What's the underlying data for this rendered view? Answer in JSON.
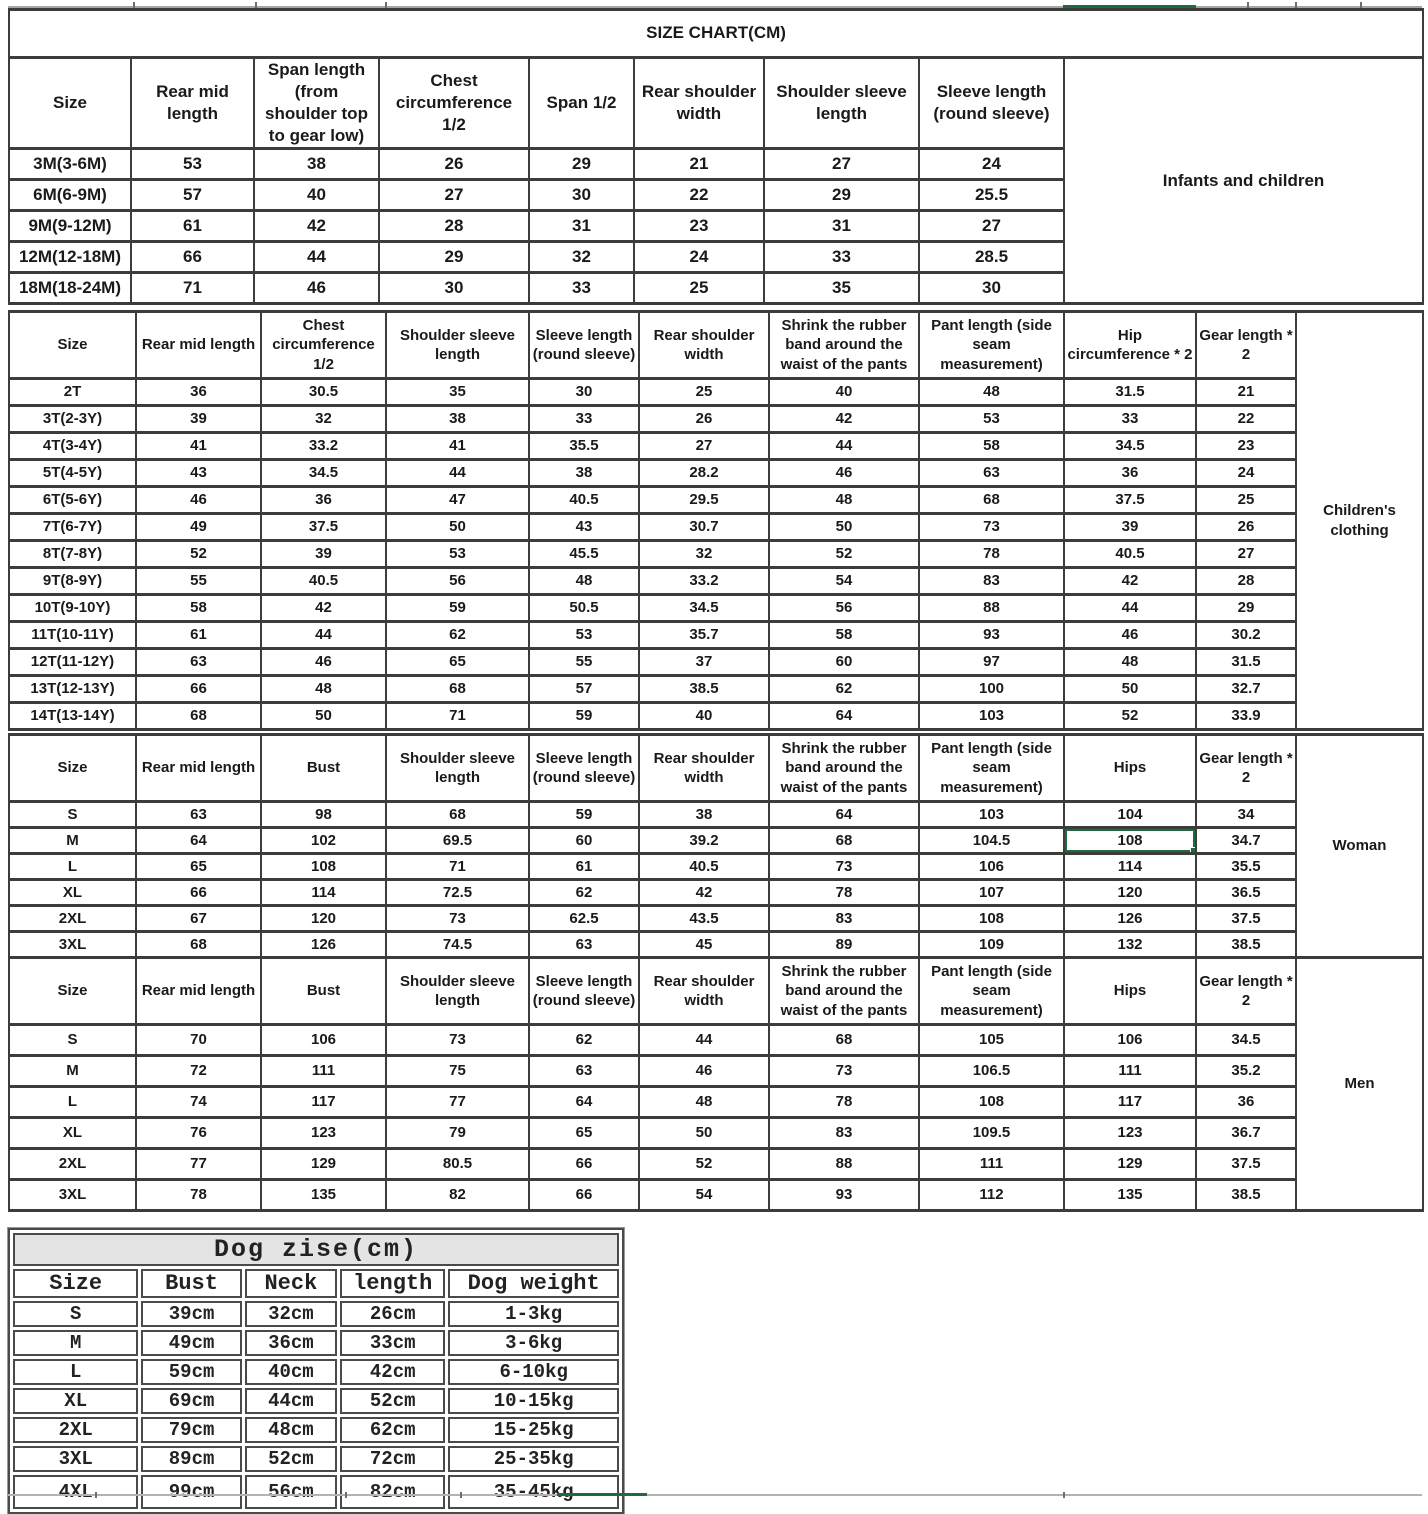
{
  "title": "SIZE CHART(CM)",
  "colors": {
    "accent_blue": "#2e74b5",
    "accent_navy": "#1f3864",
    "accent_red": "#9e2b25",
    "label_red": "#c00000",
    "selection_green": "#1e6b3c"
  },
  "infants": {
    "label": "Infants and children",
    "headers": [
      "Size",
      "Rear mid length",
      "Span length (from shoulder top to gear low)",
      "Chest circumference 1/2",
      "Span 1/2",
      "Rear shoulder width",
      "Shoulder sleeve length",
      "Sleeve length (round sleeve)"
    ],
    "rows": [
      {
        "size": "3M(3-6M)",
        "values": [
          53,
          38,
          26,
          29,
          21,
          27,
          24
        ]
      },
      {
        "size": "6M(6-9M)",
        "values": [
          57,
          40,
          27,
          30,
          22,
          29,
          25.5
        ]
      },
      {
        "size": "9M(9-12M)",
        "values": [
          61,
          42,
          28,
          31,
          23,
          31,
          27
        ]
      },
      {
        "size": "12M(12-18M)",
        "values": [
          66,
          44,
          29,
          32,
          24,
          33,
          28.5
        ]
      },
      {
        "size": "18M(18-24M)",
        "values": [
          71,
          46,
          30,
          33,
          25,
          35,
          30
        ]
      }
    ]
  },
  "children": {
    "label": "Children's clothing",
    "headers": [
      "Size",
      "Rear mid length",
      "Chest circumference 1/2",
      "Shoulder sleeve length",
      "Sleeve length (round sleeve)",
      "Rear shoulder width",
      "Shrink the rubber band around the waist of the pants",
      "Pant length (side seam measurement)",
      "Hip circumference * 2",
      "Gear length * 2"
    ],
    "black_value_cols": [
      4,
      7
    ],
    "rows": [
      {
        "size": "2T",
        "color": "black",
        "values": [
          36,
          30.5,
          35,
          30,
          25,
          40,
          48,
          31.5,
          21
        ]
      },
      {
        "size": "3T(2-3Y)",
        "color": "blue",
        "values": [
          39,
          32,
          38,
          33,
          26,
          42,
          53,
          33,
          22
        ]
      },
      {
        "size": "4T(3-4Y)",
        "color": "blue",
        "values": [
          41,
          33.2,
          41,
          35.5,
          27,
          44,
          58,
          34.5,
          23
        ]
      },
      {
        "size": "5T(4-5Y)",
        "color": "blue",
        "values": [
          43,
          34.5,
          44,
          38,
          28.2,
          46,
          63,
          36,
          24
        ]
      },
      {
        "size": "6T(5-6Y)",
        "color": "blue",
        "values": [
          46,
          36,
          47,
          40.5,
          29.5,
          48,
          68,
          37.5,
          25
        ]
      },
      {
        "size": "7T(6-7Y)",
        "color": "blue",
        "values": [
          49,
          37.5,
          50,
          43,
          30.7,
          50,
          73,
          39,
          26
        ]
      },
      {
        "size": "8T(7-8Y)",
        "color": "navy",
        "values": [
          52,
          39,
          53,
          45.5,
          32,
          52,
          78,
          40.5,
          27
        ]
      },
      {
        "size": "9T(8-9Y)",
        "color": "navy",
        "values": [
          55,
          40.5,
          56,
          48,
          33.2,
          54,
          83,
          42,
          28
        ]
      },
      {
        "size": "10T(9-10Y)",
        "color": "navy",
        "values": [
          58,
          42,
          59,
          50.5,
          34.5,
          56,
          88,
          44,
          29
        ]
      },
      {
        "size": "11T(10-11Y)",
        "color": "navy",
        "values": [
          61,
          44,
          62,
          53,
          35.7,
          58,
          93,
          46,
          30.2
        ]
      },
      {
        "size": "12T(11-12Y)",
        "color": "red",
        "values": [
          63,
          46,
          65,
          55,
          37,
          60,
          97,
          48,
          31.5
        ]
      },
      {
        "size": "13T(12-13Y)",
        "color": "red",
        "values": [
          66,
          48,
          68,
          57,
          38.5,
          62,
          100,
          50,
          32.7
        ]
      },
      {
        "size": "14T(13-14Y)",
        "color": "red",
        "values": [
          68,
          50,
          71,
          59,
          40,
          64,
          103,
          52,
          33.9
        ]
      }
    ]
  },
  "woman": {
    "label": "Woman",
    "headers": [
      "Size",
      "Rear mid length",
      "Bust",
      "Shoulder sleeve length",
      "Sleeve length (round sleeve)",
      "Rear shoulder width",
      "Shrink the rubber band around the waist of the pants",
      "Pant length (side seam measurement)",
      "Hips",
      "Gear length * 2"
    ],
    "selected": {
      "row": "M",
      "value_col": 7,
      "value": 108
    },
    "rows": [
      {
        "size": "S",
        "values": [
          63,
          98,
          68,
          59,
          38,
          64,
          103,
          104,
          34
        ]
      },
      {
        "size": "M",
        "values": [
          64,
          102,
          69.5,
          60,
          39.2,
          68,
          104.5,
          108,
          34.7
        ]
      },
      {
        "size": "L",
        "values": [
          65,
          108,
          71,
          61,
          40.5,
          73,
          106,
          114,
          35.5
        ]
      },
      {
        "size": "XL",
        "values": [
          66,
          114,
          72.5,
          62,
          42,
          78,
          107,
          120,
          36.5
        ]
      },
      {
        "size": "2XL",
        "values": [
          67,
          120,
          73,
          62.5,
          43.5,
          83,
          108,
          126,
          37.5
        ]
      },
      {
        "size": "3XL",
        "values": [
          68,
          126,
          74.5,
          63,
          45,
          89,
          109,
          132,
          38.5
        ]
      }
    ]
  },
  "men": {
    "label": "Men",
    "headers": [
      "Size",
      "Rear mid length",
      "Bust",
      "Shoulder sleeve length",
      "Sleeve length (round sleeve)",
      "Rear shoulder width",
      "Shrink the rubber band around the waist of the pants",
      "Pant length (side seam measurement)",
      "Hips",
      "Gear length * 2"
    ],
    "rows": [
      {
        "size": "S",
        "values": [
          70,
          106,
          73,
          62,
          44,
          68,
          105,
          106,
          34.5
        ]
      },
      {
        "size": "M",
        "values": [
          72,
          111,
          75,
          63,
          46,
          73,
          106.5,
          111,
          35.2
        ]
      },
      {
        "size": "L",
        "values": [
          74,
          117,
          77,
          64,
          48,
          78,
          108,
          117,
          36
        ]
      },
      {
        "size": "XL",
        "values": [
          76,
          123,
          79,
          65,
          50,
          83,
          109.5,
          123,
          36.7
        ]
      },
      {
        "size": "2XL",
        "values": [
          77,
          129,
          80.5,
          66,
          52,
          88,
          111,
          129,
          37.5
        ]
      },
      {
        "size": "3XL",
        "values": [
          78,
          135,
          82,
          66,
          54,
          93,
          112,
          135,
          38.5
        ]
      }
    ]
  },
  "dog": {
    "title": "Dog zise(cm)",
    "headers": [
      "Size",
      "Bust",
      "Neck",
      "length",
      "Dog weight"
    ],
    "rows": [
      [
        "S",
        "39cm",
        "32cm",
        "26cm",
        "1-3kg"
      ],
      [
        "M",
        "49cm",
        "36cm",
        "33cm",
        "3-6kg"
      ],
      [
        "L",
        "59cm",
        "40cm",
        "42cm",
        "6-10kg"
      ],
      [
        "XL",
        "69cm",
        "44cm",
        "52cm",
        "10-15kg"
      ],
      [
        "2XL",
        "79cm",
        "48cm",
        "62cm",
        "15-25kg"
      ],
      [
        "3XL",
        "89cm",
        "52cm",
        "72cm",
        "25-35kg"
      ],
      [
        "4XL",
        "99cm",
        "56cm",
        "82cm",
        "35-45kg"
      ]
    ]
  }
}
